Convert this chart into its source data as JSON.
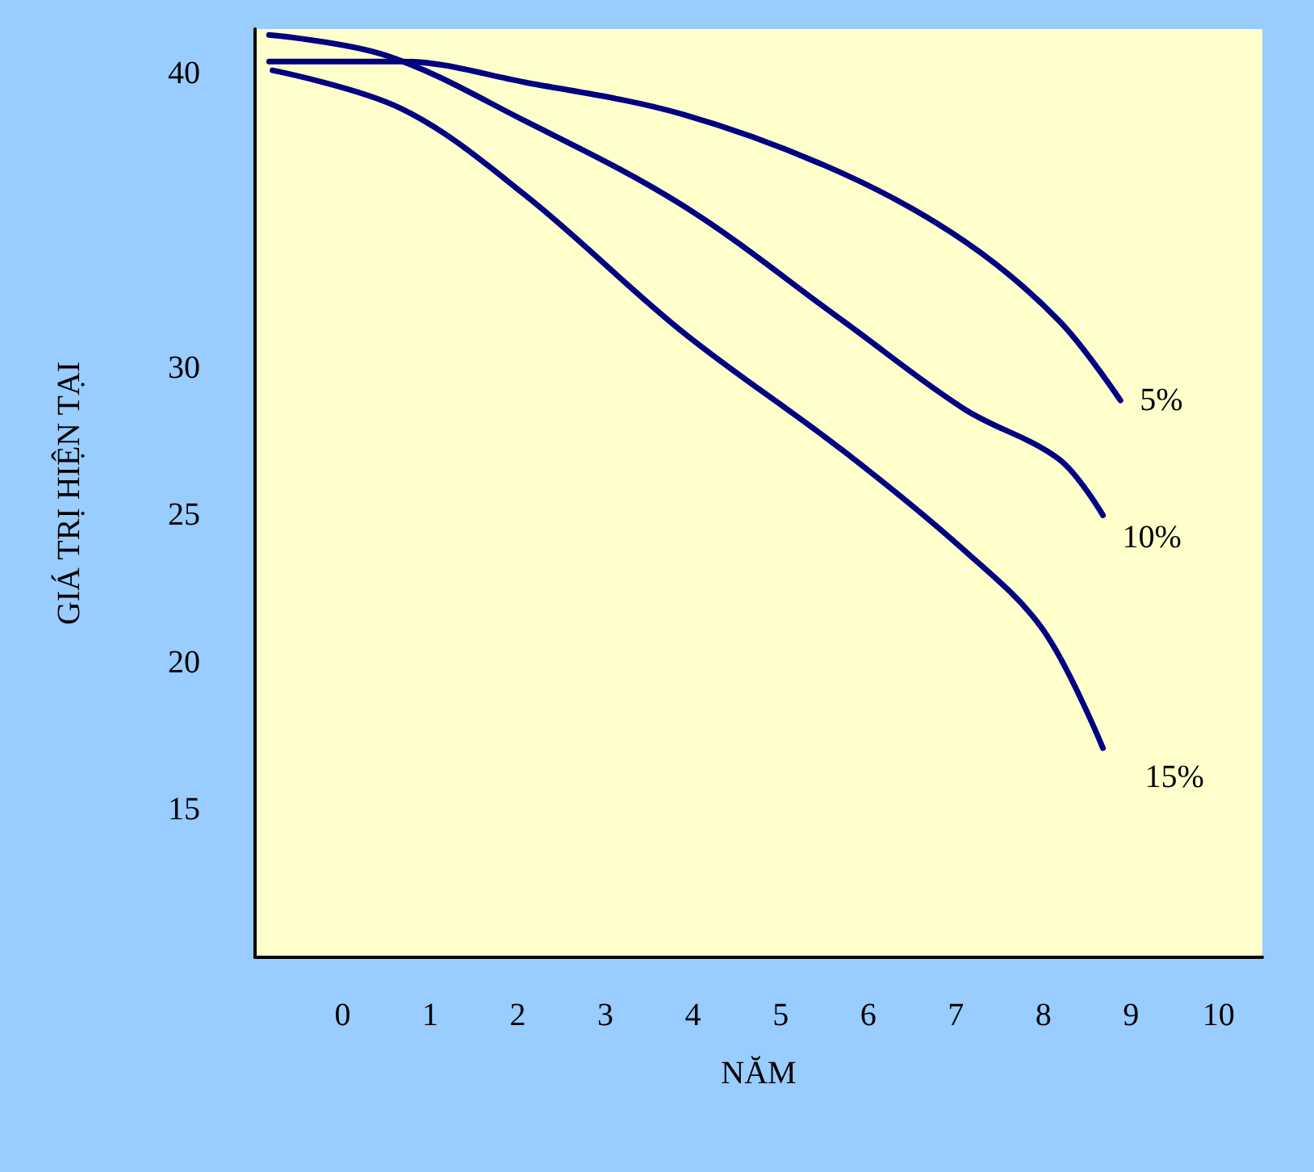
{
  "chart_data": {
    "type": "line",
    "xlabel": "NĂM",
    "ylabel": "GIÁ TRỊ HIỆN TẠI",
    "xlim": [
      -1,
      10.5
    ],
    "ylim": [
      10,
      41.5
    ],
    "xticks": [
      0,
      1,
      2,
      3,
      4,
      5,
      6,
      7,
      8,
      9,
      10
    ],
    "yticks": [
      15,
      20,
      25,
      30,
      40
    ],
    "grid": false,
    "legend": false,
    "marker": "none",
    "line_style": "solid",
    "series": [
      {
        "name": "5%",
        "color": "#000080",
        "x": [
          -0.84,
          0.67,
          2.07,
          3.89,
          5.71,
          7.1,
          8.18,
          8.88
        ],
        "values": [
          40.4,
          40.4,
          39.7,
          38.6,
          36.6,
          34.3,
          31.6,
          28.9
        ]
      },
      {
        "name": "10%",
        "color": "#000080",
        "x": [
          -0.84,
          0.5,
          2.07,
          3.89,
          5.71,
          7.1,
          8.18,
          8.68
        ],
        "values": [
          41.3,
          40.6,
          38.4,
          35.5,
          31.6,
          28.6,
          26.9,
          25.0
        ]
      },
      {
        "name": "15%",
        "color": "#000080",
        "x": [
          -0.8,
          0.67,
          2.07,
          3.89,
          5.71,
          7.1,
          8.0,
          8.68
        ],
        "values": [
          40.1,
          38.8,
          35.9,
          31.2,
          27.2,
          23.8,
          21.1,
          17.1
        ]
      }
    ]
  }
}
